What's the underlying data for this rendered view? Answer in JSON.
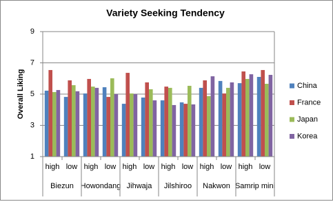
{
  "chart_data": {
    "type": "bar",
    "title": "Variety Seeking Tendency",
    "y_label": "Overall Liking",
    "categories": [
      "high",
      "low",
      "high",
      "low",
      "high",
      "low",
      "high",
      "low",
      "high",
      "low",
      "high",
      "low"
    ],
    "groups": [
      "Biezun",
      "Howondang",
      "Jihwaja",
      "Jilshiroo",
      "Nakwon",
      "Samrip mini"
    ],
    "series": [
      {
        "name": "China",
        "color": "#4f81bd",
        "values": [
          5.22,
          4.82,
          5.04,
          5.44,
          4.38,
          4.78,
          4.6,
          4.47,
          5.4,
          5.84,
          5.7,
          6.1
        ]
      },
      {
        "name": "France",
        "color": "#c0504d",
        "values": [
          6.54,
          5.88,
          5.97,
          4.82,
          6.36,
          5.75,
          5.48,
          4.38,
          5.88,
          5.04,
          6.45,
          6.54
        ]
      },
      {
        "name": "Japan",
        "color": "#9bbb59",
        "values": [
          5.13,
          5.57,
          5.48,
          6.01,
          5.04,
          5.31,
          5.4,
          5.53,
          4.87,
          5.4,
          5.97,
          5.66
        ]
      },
      {
        "name": "Korea",
        "color": "#8064a2",
        "values": [
          5.26,
          5.18,
          5.4,
          5.0,
          5.0,
          4.6,
          4.3,
          4.34,
          6.14,
          5.75,
          6.27,
          6.23
        ]
      }
    ],
    "ylim": [
      1,
      9
    ],
    "yticks": [
      1,
      3,
      5,
      7,
      9
    ],
    "grid": true,
    "legend": "right"
  }
}
